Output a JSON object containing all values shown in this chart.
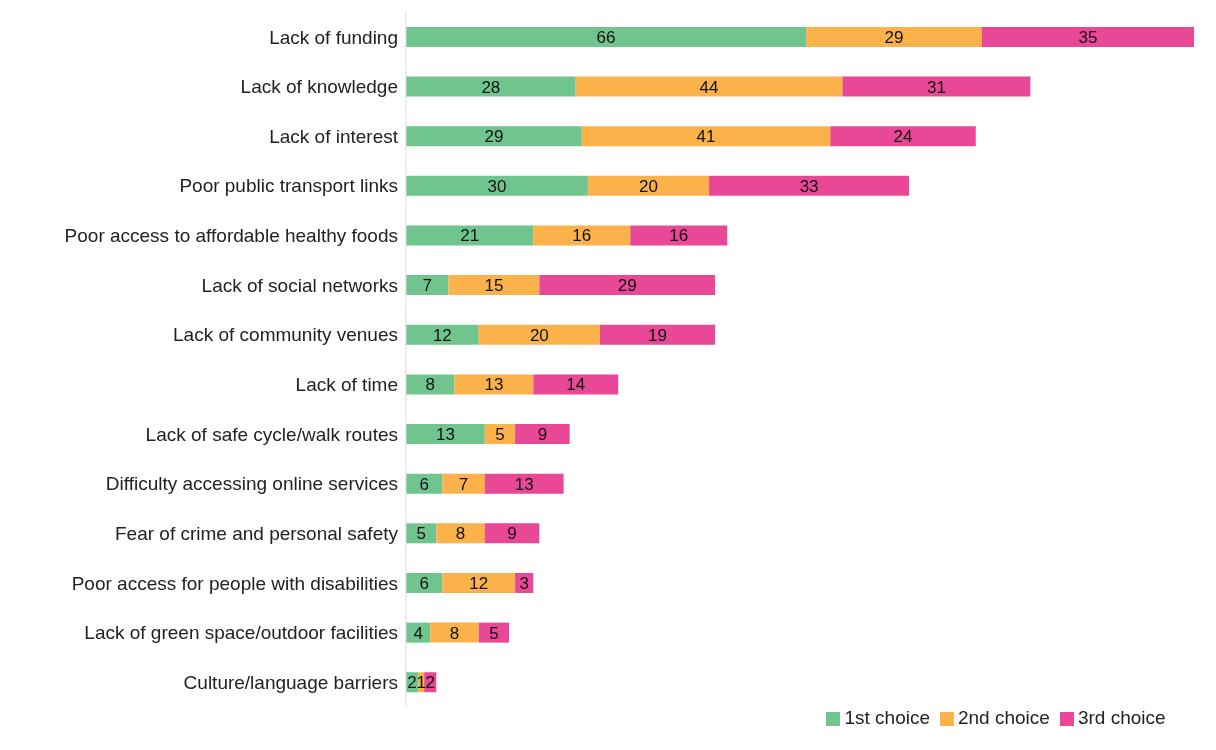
{
  "chart_data": {
    "type": "bar",
    "orientation": "horizontal",
    "stacked": true,
    "data_labels": true,
    "legend": "bottom",
    "grid": false,
    "tick_labels": "y",
    "categories": [
      "Lack of funding",
      "Lack of knowledge",
      "Lack of interest",
      "Poor public transport links",
      "Poor access to affordable healthy foods",
      "Lack of social networks",
      "Lack of community venues",
      "Lack of time",
      "Lack of safe cycle/walk routes",
      "Difficulty accessing online services",
      "Fear of crime and personal safety",
      "Poor access for people with disabilities",
      "Lack of green space/outdoor facilities",
      "Culture/language barriers"
    ],
    "series": [
      {
        "name": "1st choice",
        "color": "#70c58f",
        "values": [
          66,
          28,
          29,
          30,
          21,
          7,
          12,
          8,
          13,
          6,
          5,
          6,
          4,
          2
        ]
      },
      {
        "name": "2nd choice",
        "color": "#fbb24b",
        "values": [
          29,
          44,
          41,
          20,
          16,
          15,
          20,
          13,
          5,
          7,
          8,
          12,
          8,
          1
        ]
      },
      {
        "name": "3rd choice",
        "color": "#e84895",
        "values": [
          35,
          31,
          24,
          33,
          16,
          29,
          19,
          14,
          9,
          13,
          9,
          3,
          5,
          2
        ]
      }
    ]
  }
}
